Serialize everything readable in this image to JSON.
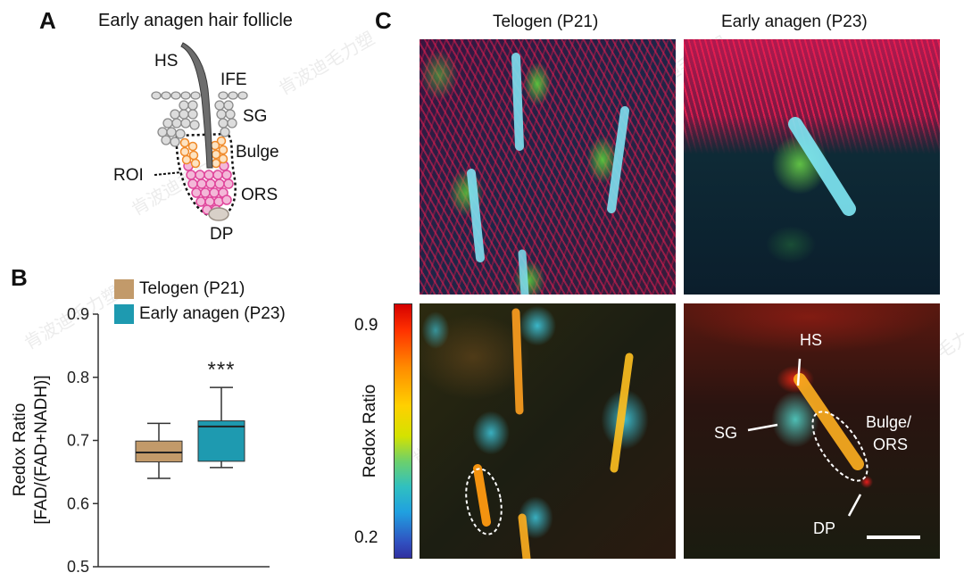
{
  "panel_a": {
    "letter": "A",
    "title": "Early anagen hair follicle",
    "labels": {
      "hs": "HS",
      "ife": "IFE",
      "sg": "SG",
      "bulge": "Bulge",
      "roi": "ROI",
      "ors": "ORS",
      "dp": "DP"
    }
  },
  "panel_b": {
    "letter": "B"
  },
  "panel_c": {
    "letter": "C",
    "col_titles": [
      "Telogen (P21)",
      "Early anagen (P23)"
    ],
    "colorbar": {
      "label": "Redox Ratio",
      "max_label": "0.9",
      "min_label": "0.2"
    },
    "annotations": {
      "hs": "HS",
      "sg": "SG",
      "bulge_ors_1": "Bulge/",
      "bulge_ors_2": "ORS",
      "dp": "DP"
    }
  },
  "watermark": "肯波迪毛力塑",
  "chart_data": {
    "type": "box",
    "ylabel": "Redox Ratio [FAD/(FAD+NADH)]",
    "ylabel_line1": "Redox Ratio",
    "ylabel_line2": "[FAD/(FAD+NADH)]",
    "ylim": [
      0.5,
      0.9
    ],
    "yticks": [
      0.5,
      0.6,
      0.7,
      0.8,
      0.9
    ],
    "ytick_labels": [
      "0.5",
      "0.6",
      "0.7",
      "0.8",
      "0.9"
    ],
    "series": [
      {
        "name": "Telogen (P21)",
        "color": "#c29a6a",
        "whisker_low": 0.64,
        "q1": 0.666,
        "median": 0.681,
        "q3": 0.699,
        "whisker_high": 0.727,
        "significance": ""
      },
      {
        "name": "Early anagen (P23)",
        "color": "#1e9ab0",
        "whisker_low": 0.657,
        "q1": 0.667,
        "median": 0.722,
        "q3": 0.731,
        "whisker_high": 0.784,
        "significance": "***"
      }
    ]
  }
}
